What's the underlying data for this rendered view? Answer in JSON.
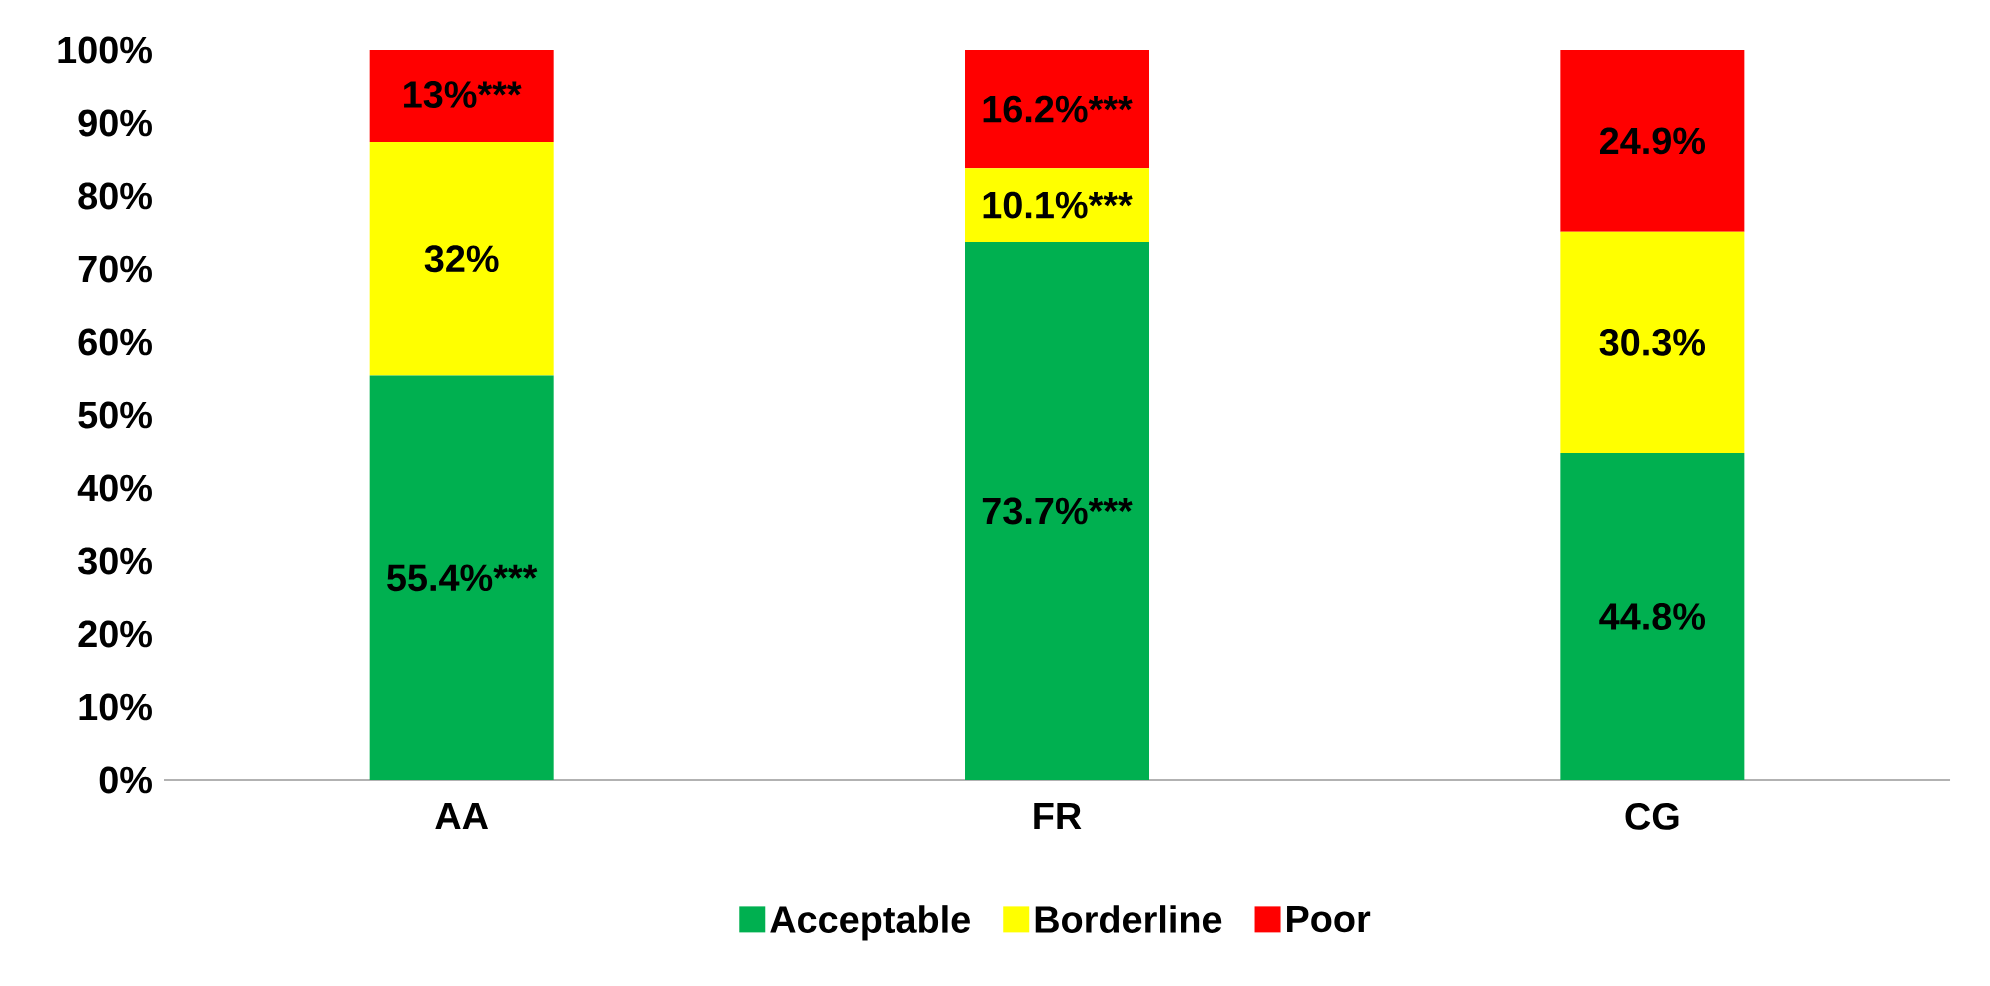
{
  "chart_data": {
    "type": "bar",
    "stacked": true,
    "categories": [
      "AA",
      "FR",
      "CG"
    ],
    "series": [
      {
        "name": "Acceptable",
        "color": "#00b050",
        "values": [
          55.4,
          73.7,
          44.8
        ],
        "value_labels": [
          "55.4%***",
          "73.7%***",
          "44.8%"
        ]
      },
      {
        "name": "Borderline",
        "color": "#ffff00",
        "values": [
          32,
          10.1,
          30.3
        ],
        "value_labels": [
          "32%",
          "10.1%***",
          "30.3%"
        ]
      },
      {
        "name": "Poor",
        "color": "#ff0000",
        "values": [
          13,
          16.2,
          24.9
        ],
        "value_labels": [
          "13%***",
          "16.2%***",
          "24.9%"
        ]
      }
    ],
    "ylim": [
      0,
      100
    ],
    "yticks": [
      {
        "value": 0,
        "label": "0%"
      },
      {
        "value": 10,
        "label": "10%"
      },
      {
        "value": 20,
        "label": "20%"
      },
      {
        "value": 30,
        "label": "30%"
      },
      {
        "value": 40,
        "label": "40%"
      },
      {
        "value": 50,
        "label": "50%"
      },
      {
        "value": 60,
        "label": "60%"
      },
      {
        "value": 70,
        "label": "70%"
      },
      {
        "value": 80,
        "label": "80%"
      },
      {
        "value": 90,
        "label": "90%"
      },
      {
        "value": 100,
        "label": "100%"
      }
    ],
    "legend": "bottom"
  }
}
